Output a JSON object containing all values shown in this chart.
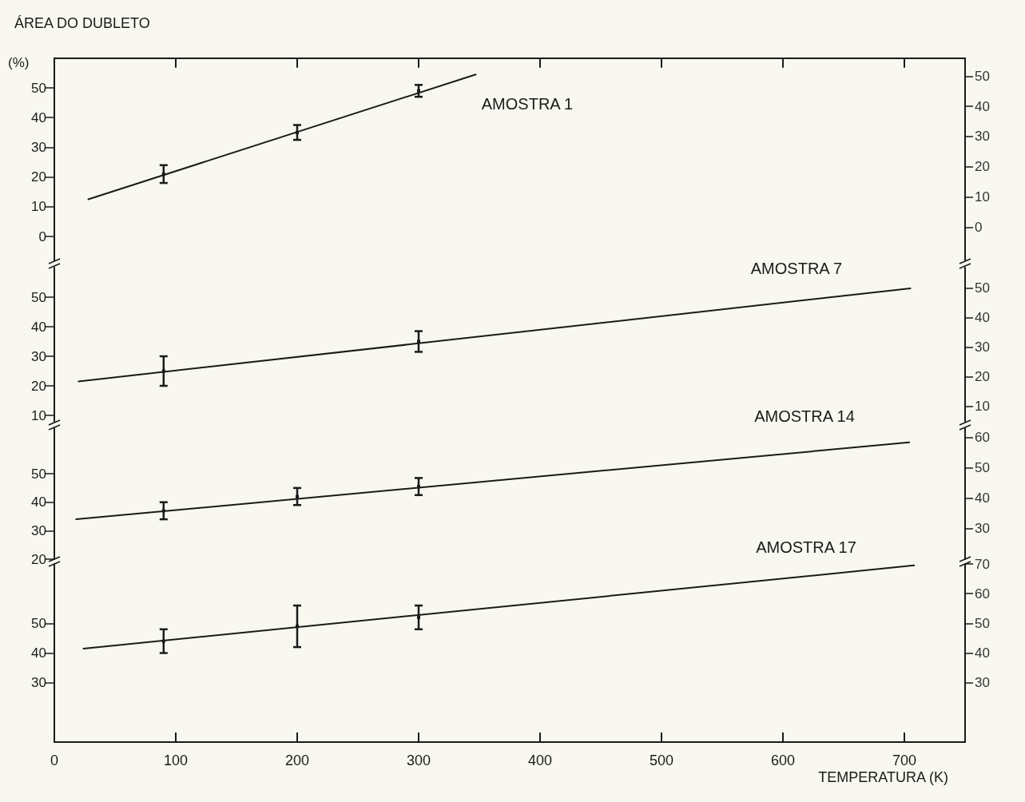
{
  "chart_data": [
    {
      "type": "scatter",
      "ylabel": "ÁREA DO DUBLETO",
      "annotations": [
        "(%)",
        "AMOSTRA 1"
      ],
      "xlim": [
        0,
        750
      ],
      "xticks": [
        0,
        100,
        200,
        300,
        400,
        500,
        600,
        700
      ],
      "ylim": [
        -8,
        60
      ],
      "yticks": [
        0,
        10,
        20,
        30,
        40,
        50
      ],
      "y2lim": [
        -11,
        56
      ],
      "y2ticks": [
        0,
        10,
        20,
        30,
        40,
        50
      ],
      "tick_labels": "y",
      "grid": false,
      "series": [
        {
          "color": "#1a1a1a",
          "x": [
            90,
            200,
            300
          ],
          "values": [
            21,
            35,
            49
          ],
          "errors": [
            3,
            2.5,
            2
          ]
        },
        {
          "type": "line",
          "color": "#1a1a1a",
          "x": [
            28,
            347
          ],
          "values": [
            12.5,
            54.5
          ],
          "marker": "none",
          "line_style": "solid"
        }
      ]
    },
    {
      "type": "scatter",
      "annotations": [
        "AMOSTRA 7"
      ],
      "xlim": [
        0,
        750
      ],
      "xticks": [
        0,
        100,
        200,
        300,
        400,
        500,
        600,
        700
      ],
      "ylim": [
        8,
        60
      ],
      "yticks": [
        10,
        20,
        30,
        40,
        50
      ],
      "y2lim": [
        5,
        57
      ],
      "y2ticks": [
        10,
        20,
        30,
        40,
        50
      ],
      "tick_labels": "y",
      "grid": false,
      "series": [
        {
          "color": "#1a1a1a",
          "x": [
            90,
            300
          ],
          "values": [
            25,
            35
          ],
          "errors": [
            5,
            3.5
          ]
        },
        {
          "type": "line",
          "color": "#1a1a1a",
          "x": [
            20,
            705
          ],
          "values": [
            21.5,
            53
          ],
          "marker": "none",
          "line_style": "solid"
        }
      ]
    },
    {
      "type": "scatter",
      "annotations": [
        "AMOSTRA 14"
      ],
      "xlim": [
        0,
        750
      ],
      "xticks": [
        0,
        100,
        200,
        300,
        400,
        500,
        600,
        700
      ],
      "ylim": [
        20,
        66
      ],
      "yticks": [
        20,
        30,
        40,
        50
      ],
      "y2lim": [
        20,
        63
      ],
      "y2ticks": [
        30,
        40,
        50,
        60
      ],
      "tick_labels": "y",
      "grid": false,
      "series": [
        {
          "color": "#1a1a1a",
          "x": [
            90,
            200,
            300
          ],
          "values": [
            37,
            42,
            45.5
          ],
          "errors": [
            3,
            3,
            3
          ]
        },
        {
          "type": "line",
          "color": "#1a1a1a",
          "x": [
            18,
            704
          ],
          "values": [
            34,
            61
          ],
          "marker": "none",
          "line_style": "solid"
        }
      ]
    },
    {
      "type": "scatter",
      "xlabel": "TEMPERATURA (K)",
      "annotations": [
        "AMOSTRA 17"
      ],
      "xlim": [
        0,
        750
      ],
      "xticks": [
        0,
        100,
        200,
        300,
        400,
        500,
        600,
        700
      ],
      "ylim": [
        10,
        70
      ],
      "yticks": [
        30,
        40,
        50
      ],
      "y2lim": [
        10,
        70
      ],
      "y2ticks": [
        30,
        40,
        50,
        60,
        70
      ],
      "grid": false,
      "series": [
        {
          "color": "#1a1a1a",
          "x": [
            90,
            200,
            300
          ],
          "values": [
            44,
            49,
            52
          ],
          "errors": [
            4,
            7,
            4
          ]
        },
        {
          "type": "line",
          "color": "#1a1a1a",
          "x": [
            24,
            708
          ],
          "values": [
            41.5,
            69.5
          ],
          "marker": "none",
          "line_style": "solid"
        }
      ]
    }
  ]
}
